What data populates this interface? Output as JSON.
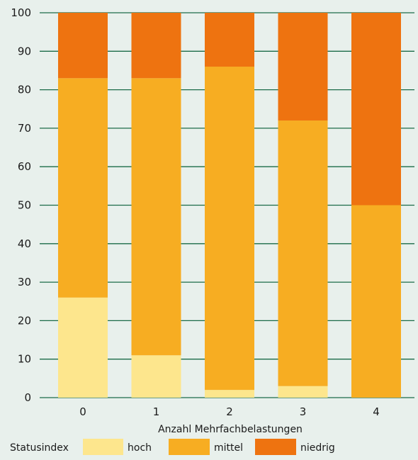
{
  "chart_data": {
    "type": "bar",
    "stacked": true,
    "orientation": "vertical",
    "categories": [
      "0",
      "1",
      "2",
      "3",
      "4"
    ],
    "series": [
      {
        "name": "hoch",
        "color": "#fde68d",
        "values": [
          26,
          11,
          2,
          3,
          0
        ]
      },
      {
        "name": "mittel",
        "color": "#f7ad22",
        "values": [
          57,
          72,
          84,
          69,
          50
        ]
      },
      {
        "name": "niedrig",
        "color": "#ee7310",
        "values": [
          17,
          17,
          14,
          28,
          50
        ]
      }
    ],
    "xlabel": "Anzahl Mehrfachbelastungen",
    "ylabel": "",
    "ylim": [
      0,
      100
    ],
    "yticks": [
      0,
      10,
      20,
      30,
      40,
      50,
      60,
      70,
      80,
      90,
      100
    ],
    "grid": true,
    "grid_color": "#1b6b48",
    "background_color": "#e8f0ec",
    "legend": {
      "title": "Statusindex",
      "placement": "bottom"
    }
  }
}
